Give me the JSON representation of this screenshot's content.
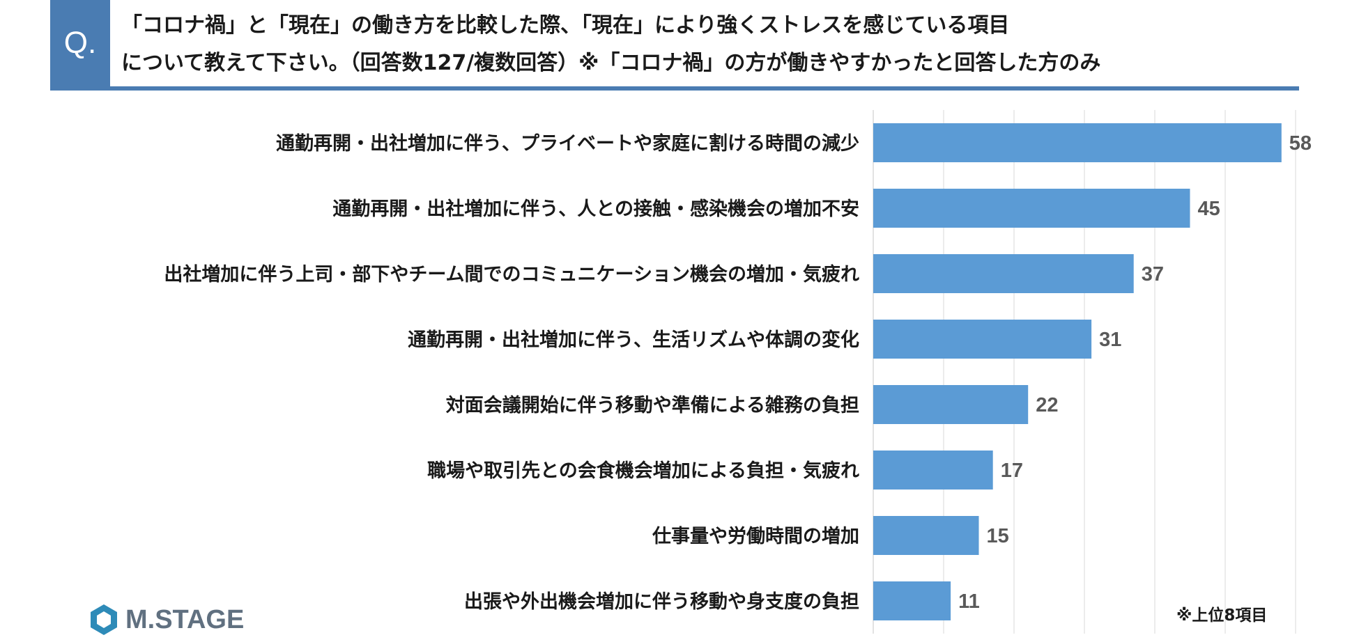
{
  "header": {
    "q_mark": "Q.",
    "question_line1": "「コロナ禍」と「現在」の働き方を比較した際、「現在」により強くストレスを感じている項目",
    "question_line2": "について教えて下さい。（回答数127/複数回答）※「コロナ禍」の方が働きやすかったと回答した方のみ"
  },
  "footnote": "※上位8項目",
  "logo": {
    "text": "M.STAGE",
    "icon": "hexagon-logo-icon"
  },
  "colors": {
    "bar": "#5b9bd5",
    "accent": "#4a7cb2",
    "grid": "#d9d9d9",
    "value_label": "#595959"
  },
  "chart_data": {
    "type": "bar",
    "orientation": "horizontal",
    "categories": [
      "通勤再開・出社増加に伴う、プライベートや家庭に割ける時間の減少",
      "通勤再開・出社増加に伴う、人との接触・感染機会の増加不安",
      "出社増加に伴う上司・部下やチーム間でのコミュニケーション機会の増加・気疲れ",
      "通勤再開・出社増加に伴う、生活リズムや体調の変化",
      "対面会議開始に伴う移動や準備による雑務の負担",
      "職場や取引先との会食機会増加による負担・気疲れ",
      "仕事量や労働時間の増加",
      "出張や外出機会増加に伴う移動や身支度の負担"
    ],
    "values": [
      58,
      45,
      37,
      31,
      22,
      17,
      15,
      11
    ],
    "xlim": [
      0,
      60
    ],
    "grid": true,
    "gridline_step": 10
  }
}
